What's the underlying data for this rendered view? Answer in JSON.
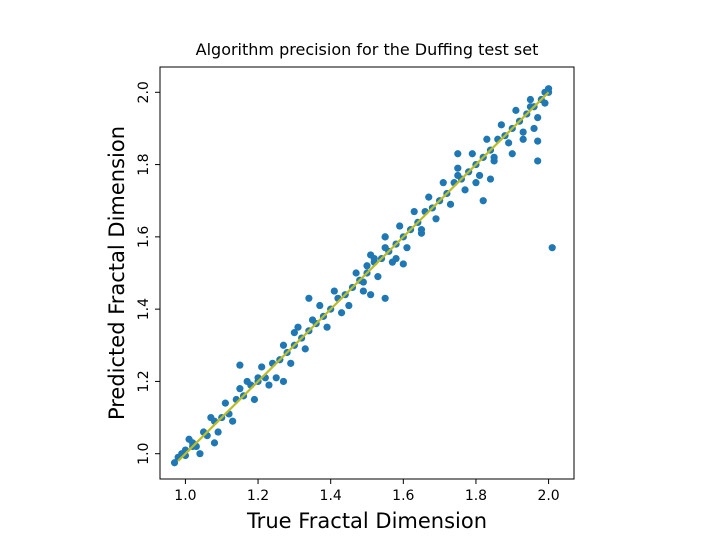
{
  "chart_data": {
    "type": "scatter",
    "title": "Algorithm precision for the Duffing test set",
    "xlabel": "True Fractal Dimension",
    "ylabel": "Predicted Fractal Dimension",
    "xlim": [
      0.93,
      2.07
    ],
    "ylim": [
      0.93,
      2.07
    ],
    "xticks": [
      1.0,
      1.2,
      1.4,
      1.6,
      1.8,
      2.0
    ],
    "yticks": [
      1.0,
      1.2,
      1.4,
      1.6,
      1.8,
      2.0
    ],
    "xtick_labels": [
      "1.0",
      "1.2",
      "1.4",
      "1.6",
      "1.8",
      "2.0"
    ],
    "ytick_labels": [
      "1.0",
      "1.2",
      "1.4",
      "1.6",
      "1.8",
      "2.0"
    ],
    "grid": false,
    "colors": {
      "points": "#1f77b4",
      "reference_line": "#bcbd22"
    },
    "series": [
      {
        "points": [
          [
            0.97,
            0.975
          ],
          [
            0.98,
            0.99
          ],
          [
            0.99,
            1.0
          ],
          [
            1.0,
            1.01
          ],
          [
            1.0,
            0.995
          ],
          [
            1.02,
            1.03
          ],
          [
            1.03,
            1.02
          ],
          [
            1.05,
            1.06
          ],
          [
            1.06,
            1.05
          ],
          [
            1.08,
            1.09
          ],
          [
            1.1,
            1.1
          ],
          [
            1.12,
            1.11
          ],
          [
            1.14,
            1.15
          ],
          [
            1.16,
            1.16
          ],
          [
            1.18,
            1.19
          ],
          [
            1.2,
            1.2
          ],
          [
            1.22,
            1.21
          ],
          [
            1.24,
            1.25
          ],
          [
            1.26,
            1.26
          ],
          [
            1.28,
            1.28
          ],
          [
            1.3,
            1.3
          ],
          [
            1.32,
            1.32
          ],
          [
            1.34,
            1.34
          ],
          [
            1.36,
            1.36
          ],
          [
            1.38,
            1.38
          ],
          [
            1.4,
            1.4
          ],
          [
            1.42,
            1.43
          ],
          [
            1.44,
            1.44
          ],
          [
            1.46,
            1.46
          ],
          [
            1.48,
            1.48
          ],
          [
            1.5,
            1.5
          ],
          [
            1.52,
            1.53
          ],
          [
            1.54,
            1.54
          ],
          [
            1.56,
            1.56
          ],
          [
            1.58,
            1.58
          ],
          [
            1.6,
            1.6
          ],
          [
            1.62,
            1.62
          ],
          [
            1.64,
            1.64
          ],
          [
            1.66,
            1.67
          ],
          [
            1.68,
            1.68
          ],
          [
            1.7,
            1.7
          ],
          [
            1.72,
            1.72
          ],
          [
            1.74,
            1.75
          ],
          [
            1.76,
            1.76
          ],
          [
            1.78,
            1.78
          ],
          [
            1.8,
            1.8
          ],
          [
            1.82,
            1.82
          ],
          [
            1.84,
            1.84
          ],
          [
            1.86,
            1.87
          ],
          [
            1.88,
            1.88
          ],
          [
            1.9,
            1.9
          ],
          [
            1.92,
            1.92
          ],
          [
            1.94,
            1.94
          ],
          [
            1.96,
            1.96
          ],
          [
            1.98,
            1.98
          ],
          [
            2.0,
            2.0
          ],
          [
            2.0,
            2.01
          ],
          [
            1.99,
            1.97
          ],
          [
            1.01,
            1.04
          ],
          [
            1.04,
            1.0
          ],
          [
            1.07,
            1.1
          ],
          [
            1.09,
            1.06
          ],
          [
            1.11,
            1.14
          ],
          [
            1.13,
            1.09
          ],
          [
            1.17,
            1.2
          ],
          [
            1.19,
            1.15
          ],
          [
            1.21,
            1.24
          ],
          [
            1.23,
            1.19
          ],
          [
            1.27,
            1.3
          ],
          [
            1.29,
            1.25
          ],
          [
            1.31,
            1.35
          ],
          [
            1.33,
            1.29
          ],
          [
            1.37,
            1.41
          ],
          [
            1.39,
            1.35
          ],
          [
            1.41,
            1.45
          ],
          [
            1.43,
            1.39
          ],
          [
            1.47,
            1.5
          ],
          [
            1.49,
            1.45
          ],
          [
            1.51,
            1.55
          ],
          [
            1.53,
            1.49
          ],
          [
            1.55,
            1.6
          ],
          [
            1.57,
            1.53
          ],
          [
            1.59,
            1.63
          ],
          [
            1.61,
            1.57
          ],
          [
            1.63,
            1.67
          ],
          [
            1.65,
            1.61
          ],
          [
            1.67,
            1.71
          ],
          [
            1.69,
            1.65
          ],
          [
            1.71,
            1.75
          ],
          [
            1.73,
            1.69
          ],
          [
            1.75,
            1.79
          ],
          [
            1.77,
            1.73
          ],
          [
            1.79,
            1.83
          ],
          [
            1.81,
            1.77
          ],
          [
            1.83,
            1.87
          ],
          [
            1.85,
            1.81
          ],
          [
            1.87,
            1.91
          ],
          [
            1.89,
            1.86
          ],
          [
            1.91,
            1.95
          ],
          [
            1.93,
            1.89
          ],
          [
            1.95,
            1.98
          ],
          [
            1.97,
            1.93
          ],
          [
            1.08,
            1.03
          ],
          [
            1.25,
            1.21
          ],
          [
            1.45,
            1.41
          ],
          [
            1.65,
            1.62
          ],
          [
            1.85,
            1.82
          ],
          [
            1.15,
            1.18
          ],
          [
            1.35,
            1.37
          ],
          [
            1.55,
            1.57
          ],
          [
            1.75,
            1.77
          ],
          [
            1.95,
            1.96
          ],
          [
            1.15,
            1.245
          ],
          [
            1.2,
            1.21
          ],
          [
            1.27,
            1.2
          ],
          [
            1.34,
            1.43
          ],
          [
            1.3,
            1.335
          ],
          [
            1.5,
            1.52
          ],
          [
            1.52,
            1.54
          ],
          [
            1.55,
            1.6
          ],
          [
            1.58,
            1.54
          ],
          [
            1.6,
            1.525
          ],
          [
            1.49,
            1.475
          ],
          [
            1.51,
            1.44
          ],
          [
            1.55,
            1.43
          ],
          [
            1.75,
            1.83
          ],
          [
            1.8,
            1.75
          ],
          [
            1.82,
            1.7
          ],
          [
            1.84,
            1.76
          ],
          [
            1.9,
            1.83
          ],
          [
            1.93,
            1.87
          ],
          [
            1.96,
            1.9
          ],
          [
            1.97,
            1.865
          ],
          [
            1.97,
            1.81
          ],
          [
            2.01,
            1.57
          ],
          [
            1.99,
            2.0
          ],
          [
            1.02,
            1.02
          ]
        ]
      }
    ],
    "reference_line": [
      [
        0.98,
        0.98
      ],
      [
        2.0,
        2.0
      ]
    ]
  }
}
